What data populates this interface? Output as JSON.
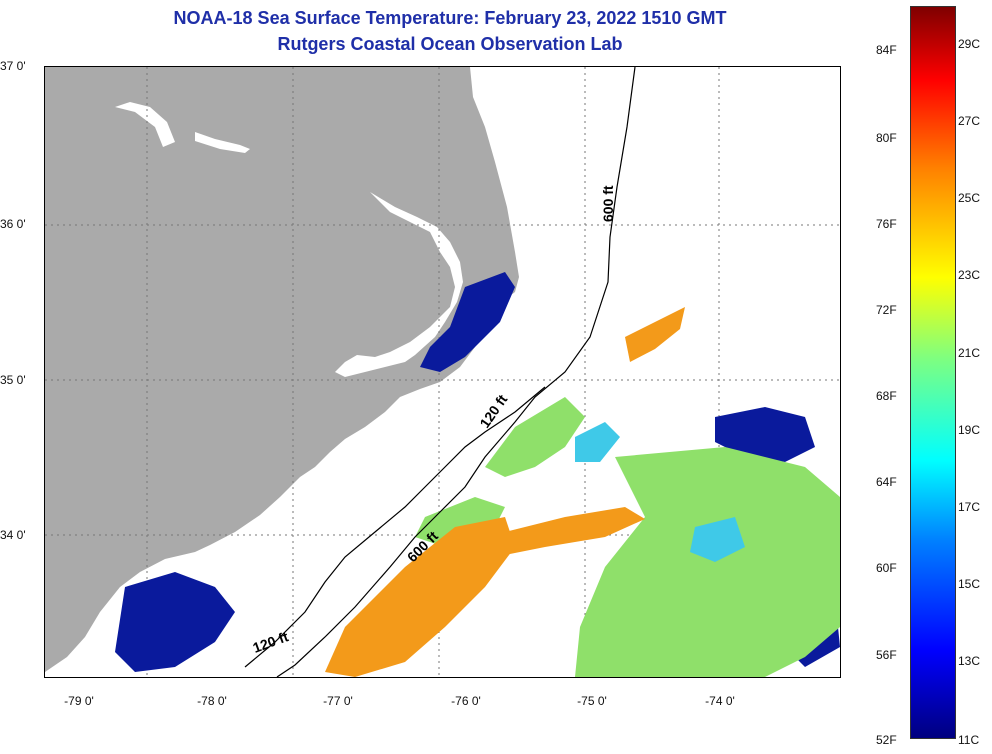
{
  "header": {
    "title": "NOAA-18 Sea Surface Temperature:  February 23, 2022 1510 GMT",
    "subtitle": "Rutgers Coastal Ocean Observation Lab"
  },
  "axes": {
    "lat_labels": [
      "37 0'",
      "36 0'",
      "35 0'",
      "34 0'"
    ],
    "lon_labels": [
      "-79 0'",
      "-78 0'",
      "-77 0'",
      "-76 0'",
      "-75 0'",
      "-74 0'"
    ]
  },
  "contours": {
    "c1": "600 ft",
    "c2": "120 ft",
    "c3": "600 ft",
    "c4": "120 ft"
  },
  "colorbar": {
    "fahrenheit": [
      "84F",
      "80F",
      "76F",
      "72F",
      "68F",
      "64F",
      "60F",
      "56F",
      "52F"
    ],
    "celsius": [
      "29C",
      "27C",
      "25C",
      "23C",
      "21C",
      "19C",
      "17C",
      "15C",
      "13C",
      "11C"
    ]
  },
  "colors": {
    "land": "#aaaaaa",
    "cold": "#0a1a9c",
    "mid": "#8fe06a",
    "warm": "#f39a1a"
  }
}
